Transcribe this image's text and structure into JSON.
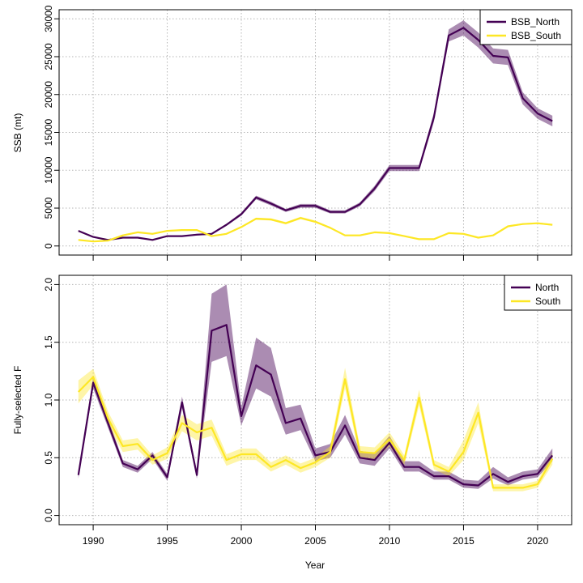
{
  "chart_data": [
    {
      "type": "line",
      "panel": "top",
      "xlabel": "",
      "ylabel": "SSB (mt)",
      "xlim": [
        1988,
        2022
      ],
      "ylim": [
        0,
        30000
      ],
      "yticks": [
        0,
        5000,
        10000,
        15000,
        20000,
        25000,
        30000
      ],
      "xticks": [
        1990,
        1995,
        2000,
        2005,
        2010,
        2015,
        2020
      ],
      "grid": true,
      "legend": "top-right",
      "colors": {
        "BSB_North": "#440154",
        "BSB_South": "#FDE725"
      },
      "x": [
        1989,
        1990,
        1991,
        1992,
        1993,
        1994,
        1995,
        1996,
        1997,
        1998,
        1999,
        2000,
        2001,
        2002,
        2003,
        2004,
        2005,
        2006,
        2007,
        2008,
        2009,
        2010,
        2011,
        2012,
        2013,
        2014,
        2015,
        2016,
        2017,
        2018,
        2019,
        2020,
        2021
      ],
      "series": [
        {
          "name": "BSB_North",
          "values": [
            2000,
            1200,
            800,
            1100,
            1100,
            800,
            1300,
            1300,
            1500,
            1600,
            2800,
            4200,
            6400,
            5600,
            4700,
            5300,
            5300,
            4500,
            4500,
            5500,
            7600,
            10300,
            10300,
            10300,
            17000,
            27800,
            28800,
            27200,
            25100,
            24900,
            19500,
            17500,
            16500
          ],
          "lower": [
            1900,
            1100,
            750,
            1050,
            1050,
            750,
            1250,
            1250,
            1400,
            1500,
            2650,
            4000,
            6150,
            5350,
            4500,
            5050,
            5050,
            4300,
            4300,
            5250,
            7250,
            9900,
            9900,
            9900,
            16400,
            27000,
            27800,
            26200,
            24100,
            23900,
            18700,
            16800,
            15800
          ],
          "upper": [
            2100,
            1300,
            850,
            1150,
            1150,
            850,
            1350,
            1350,
            1600,
            1700,
            2950,
            4400,
            6650,
            5850,
            4900,
            5550,
            5550,
            4700,
            4700,
            5750,
            7950,
            10700,
            10700,
            10700,
            17600,
            28600,
            29800,
            28200,
            26100,
            25900,
            20300,
            18200,
            17200
          ]
        },
        {
          "name": "BSB_South",
          "values": [
            800,
            600,
            700,
            1400,
            1800,
            1600,
            2000,
            2100,
            2100,
            1300,
            1600,
            2500,
            3600,
            3500,
            3000,
            3700,
            3200,
            2400,
            1400,
            1400,
            1800,
            1700,
            1300,
            900,
            900,
            1700,
            1600,
            1100,
            1400,
            2600,
            2900,
            3000,
            2800
          ],
          "lower": [
            700,
            550,
            650,
            1300,
            1700,
            1500,
            1900,
            2000,
            2000,
            1200,
            1500,
            2400,
            3450,
            3350,
            2850,
            3550,
            3050,
            2300,
            1300,
            1300,
            1700,
            1600,
            1200,
            800,
            800,
            1600,
            1500,
            1000,
            1300,
            2500,
            2800,
            2900,
            2700
          ],
          "upper": [
            900,
            650,
            750,
            1500,
            1900,
            1700,
            2100,
            2200,
            2200,
            1400,
            1700,
            2600,
            3750,
            3650,
            3150,
            3850,
            3350,
            2500,
            1500,
            1500,
            1900,
            1800,
            1400,
            1000,
            1000,
            1800,
            1700,
            1200,
            1500,
            2700,
            3000,
            3100,
            2900
          ]
        }
      ]
    },
    {
      "type": "line",
      "panel": "bottom",
      "xlabel": "Year",
      "ylabel": "Fully-selected F",
      "xlim": [
        1988,
        2022
      ],
      "ylim": [
        0,
        2
      ],
      "yticks": [
        0.0,
        0.5,
        1.0,
        1.5,
        2.0
      ],
      "ytick_labels": [
        "0.0",
        "0.5",
        "1.0",
        "1.5",
        "2.0"
      ],
      "xticks": [
        1990,
        1995,
        2000,
        2005,
        2010,
        2015,
        2020
      ],
      "grid": true,
      "legend": "top-right",
      "colors": {
        "North": "#440154",
        "South": "#FDE725"
      },
      "x": [
        1989,
        1990,
        1991,
        1992,
        1993,
        1994,
        1995,
        1996,
        1997,
        1998,
        1999,
        2000,
        2001,
        2002,
        2003,
        2004,
        2005,
        2006,
        2007,
        2008,
        2009,
        2010,
        2011,
        2012,
        2013,
        2014,
        2015,
        2016,
        2017,
        2018,
        2019,
        2020,
        2021
      ],
      "series": [
        {
          "name": "North",
          "values": [
            0.35,
            1.15,
            0.8,
            0.45,
            0.4,
            0.52,
            0.33,
            0.98,
            0.35,
            1.6,
            1.65,
            0.86,
            1.3,
            1.22,
            0.8,
            0.84,
            0.52,
            0.55,
            0.78,
            0.5,
            0.48,
            0.63,
            0.42,
            0.42,
            0.34,
            0.34,
            0.27,
            0.26,
            0.36,
            0.29,
            0.34,
            0.36,
            0.52
          ],
          "lower": [
            0.32,
            1.1,
            0.76,
            0.42,
            0.37,
            0.49,
            0.3,
            0.93,
            0.32,
            1.33,
            1.38,
            0.78,
            1.1,
            1.03,
            0.7,
            0.74,
            0.47,
            0.5,
            0.7,
            0.45,
            0.43,
            0.58,
            0.38,
            0.38,
            0.31,
            0.31,
            0.24,
            0.23,
            0.32,
            0.26,
            0.31,
            0.33,
            0.47
          ],
          "upper": [
            0.38,
            1.2,
            0.84,
            0.48,
            0.43,
            0.55,
            0.36,
            1.03,
            0.38,
            1.92,
            2.0,
            0.94,
            1.54,
            1.45,
            0.93,
            0.96,
            0.58,
            0.62,
            0.87,
            0.56,
            0.54,
            0.69,
            0.47,
            0.47,
            0.38,
            0.38,
            0.31,
            0.3,
            0.42,
            0.33,
            0.38,
            0.4,
            0.58
          ]
        },
        {
          "name": "South",
          "values": [
            1.07,
            1.2,
            0.84,
            0.6,
            0.62,
            0.48,
            0.54,
            0.8,
            0.72,
            0.76,
            0.48,
            0.53,
            0.53,
            0.42,
            0.48,
            0.41,
            0.46,
            0.55,
            1.18,
            0.55,
            0.54,
            0.66,
            0.48,
            1.02,
            0.44,
            0.38,
            0.55,
            0.89,
            0.24,
            0.24,
            0.24,
            0.27,
            0.49
          ],
          "lower": [
            0.97,
            1.13,
            0.78,
            0.55,
            0.57,
            0.44,
            0.49,
            0.73,
            0.65,
            0.69,
            0.43,
            0.48,
            0.48,
            0.38,
            0.44,
            0.37,
            0.42,
            0.5,
            1.1,
            0.5,
            0.49,
            0.6,
            0.44,
            0.95,
            0.4,
            0.34,
            0.48,
            0.8,
            0.21,
            0.21,
            0.21,
            0.24,
            0.44
          ],
          "upper": [
            1.17,
            1.27,
            0.9,
            0.65,
            0.67,
            0.52,
            0.59,
            0.87,
            0.79,
            0.83,
            0.53,
            0.58,
            0.58,
            0.46,
            0.52,
            0.45,
            0.5,
            0.6,
            1.28,
            0.6,
            0.59,
            0.72,
            0.52,
            1.09,
            0.48,
            0.42,
            0.65,
            0.98,
            0.27,
            0.27,
            0.27,
            0.3,
            0.54
          ]
        }
      ]
    }
  ]
}
